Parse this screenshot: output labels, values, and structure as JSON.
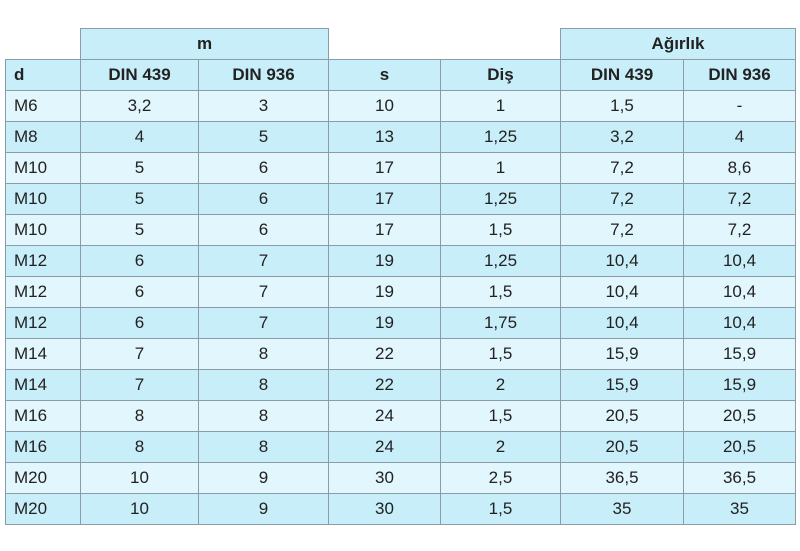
{
  "header": {
    "groups": [
      "m",
      "Ağırlık"
    ]
  },
  "table": {
    "columns": [
      "d",
      "DIN 439",
      "DIN 936",
      "s",
      "Diş",
      "DIN 439",
      "DIN 936"
    ],
    "rows": [
      [
        "M6",
        "3,2",
        "3",
        "10",
        "1",
        "1,5",
        "-"
      ],
      [
        "M8",
        "4",
        "5",
        "13",
        "1,25",
        "3,2",
        "4"
      ],
      [
        "M10",
        "5",
        "6",
        "17",
        "1",
        "7,2",
        "8,6"
      ],
      [
        "M10",
        "5",
        "6",
        "17",
        "1,25",
        "7,2",
        "7,2"
      ],
      [
        "M10",
        "5",
        "6",
        "17",
        "1,5",
        "7,2",
        "7,2"
      ],
      [
        "M12",
        "6",
        "7",
        "19",
        "1,25",
        "10,4",
        "10,4"
      ],
      [
        "M12",
        "6",
        "7",
        "19",
        "1,5",
        "10,4",
        "10,4"
      ],
      [
        "M12",
        "6",
        "7",
        "19",
        "1,75",
        "10,4",
        "10,4"
      ],
      [
        "M14",
        "7",
        "8",
        "22",
        "1,5",
        "15,9",
        "15,9"
      ],
      [
        "M14",
        "7",
        "8",
        "22",
        "2",
        "15,9",
        "15,9"
      ],
      [
        "M16",
        "8",
        "8",
        "24",
        "1,5",
        "20,5",
        "20,5"
      ],
      [
        "M16",
        "8",
        "8",
        "24",
        "2",
        "20,5",
        "20,5"
      ],
      [
        "M20",
        "10",
        "9",
        "30",
        "2,5",
        "36,5",
        "36,5"
      ],
      [
        "M20",
        "10",
        "9",
        "30",
        "1,5",
        "35",
        "35"
      ]
    ]
  }
}
